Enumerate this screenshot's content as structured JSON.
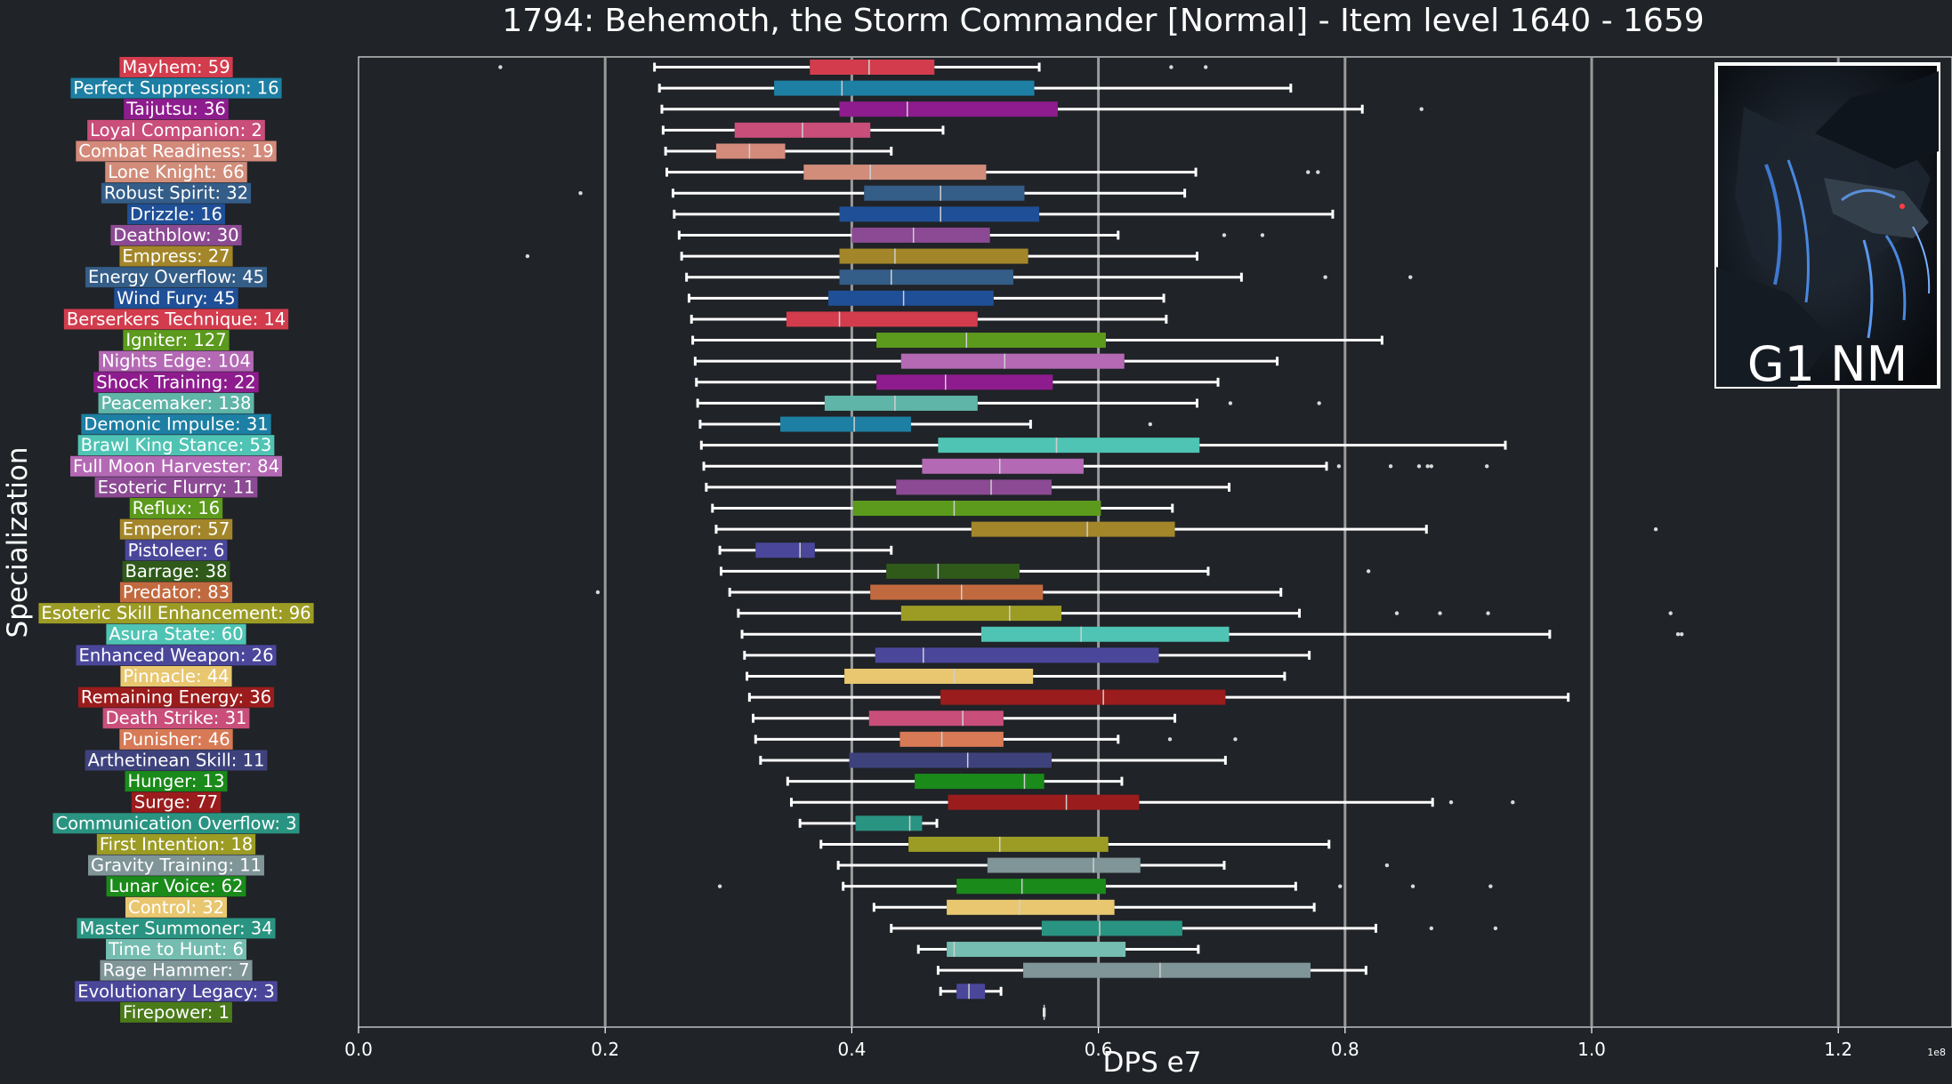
{
  "chart_data": {
    "type": "box",
    "title": "1794: Behemoth, the Storm Commander [Normal] - Item level 1640 - 1659",
    "xlabel": "DPS e7",
    "ylabel": "Specialization",
    "x_scale_note": "1e8",
    "xlim": [
      0,
      0.1295
    ],
    "x_ticks": [
      "0.0",
      "0.2",
      "0.4",
      "0.6",
      "0.8",
      "1.0",
      "1.2"
    ],
    "x_tick_values": [
      0,
      0.2,
      0.4,
      0.6,
      0.8,
      1.0,
      1.2
    ],
    "gridlines": "vertical at major ticks",
    "inset_image": {
      "caption": "G1 NM",
      "description": "dark dragon artwork",
      "placement": "top-right"
    },
    "series": [
      {
        "label": "Mayhem: 59",
        "color": "#d23c4d",
        "whislo": 0.24,
        "q1": 0.366,
        "med": 0.414,
        "q3": 0.467,
        "whishi": 0.552,
        "fliers": [
          0.115,
          0.659,
          0.687
        ]
      },
      {
        "label": "Perfect Suppression: 16",
        "color": "#1d7fa3",
        "whislo": 0.244,
        "q1": 0.337,
        "med": 0.392,
        "q3": 0.548,
        "whishi": 0.756,
        "fliers": []
      },
      {
        "label": "Taijutsu: 36",
        "color": "#8e1c8e",
        "whislo": 0.246,
        "q1": 0.39,
        "med": 0.445,
        "q3": 0.567,
        "whishi": 0.814,
        "fliers": [
          0.862
        ]
      },
      {
        "label": "Loyal Companion: 2",
        "color": "#c94e79",
        "whislo": 0.247,
        "q1": 0.305,
        "med": 0.36,
        "q3": 0.415,
        "whishi": 0.474,
        "fliers": []
      },
      {
        "label": "Combat Readiness: 19",
        "color": "#d48a7b",
        "whislo": 0.249,
        "q1": 0.29,
        "med": 0.317,
        "q3": 0.346,
        "whishi": 0.432,
        "fliers": []
      },
      {
        "label": "Lone Knight: 66",
        "color": "#d18d7a",
        "whislo": 0.25,
        "q1": 0.361,
        "med": 0.415,
        "q3": 0.509,
        "whishi": 0.679,
        "fliers": [
          0.77,
          0.778
        ]
      },
      {
        "label": "Robust Spirit: 32",
        "color": "#345d88",
        "whislo": 0.255,
        "q1": 0.41,
        "med": 0.472,
        "q3": 0.54,
        "whishi": 0.67,
        "fliers": [
          0.18
        ]
      },
      {
        "label": "Drizzle: 16",
        "color": "#1f4f96",
        "whislo": 0.256,
        "q1": 0.39,
        "med": 0.472,
        "q3": 0.552,
        "whishi": 0.79,
        "fliers": []
      },
      {
        "label": "Deathblow: 30",
        "color": "#8b4a93",
        "whislo": 0.26,
        "q1": 0.4,
        "med": 0.45,
        "q3": 0.512,
        "whishi": 0.616,
        "fliers": [
          0.702,
          0.733
        ]
      },
      {
        "label": "Empress: 27",
        "color": "#a3862a",
        "whislo": 0.262,
        "q1": 0.39,
        "med": 0.435,
        "q3": 0.543,
        "whishi": 0.68,
        "fliers": [
          0.137
        ]
      },
      {
        "label": "Energy Overflow: 45",
        "color": "#345d88",
        "whislo": 0.266,
        "q1": 0.39,
        "med": 0.432,
        "q3": 0.531,
        "whishi": 0.716,
        "fliers": [
          0.784,
          0.853
        ]
      },
      {
        "label": "Wind Fury: 45",
        "color": "#1f4f96",
        "whislo": 0.268,
        "q1": 0.381,
        "med": 0.442,
        "q3": 0.515,
        "whishi": 0.653,
        "fliers": []
      },
      {
        "label": "Berserkers Technique: 14",
        "color": "#d23c4d",
        "whislo": 0.27,
        "q1": 0.347,
        "med": 0.39,
        "q3": 0.502,
        "whishi": 0.655,
        "fliers": []
      },
      {
        "label": "Igniter: 127",
        "color": "#5b9a1c",
        "whislo": 0.271,
        "q1": 0.42,
        "med": 0.493,
        "q3": 0.606,
        "whishi": 0.83,
        "fliers": []
      },
      {
        "label": "Nights Edge: 104",
        "color": "#b469b4",
        "whislo": 0.273,
        "q1": 0.44,
        "med": 0.524,
        "q3": 0.621,
        "whishi": 0.745,
        "fliers": []
      },
      {
        "label": "Shock Training: 22",
        "color": "#8e1c8e",
        "whislo": 0.274,
        "q1": 0.42,
        "med": 0.476,
        "q3": 0.563,
        "whishi": 0.697,
        "fliers": []
      },
      {
        "label": "Peacemaker: 138",
        "color": "#5fb5a8",
        "whislo": 0.275,
        "q1": 0.378,
        "med": 0.435,
        "q3": 0.502,
        "whishi": 0.68,
        "fliers": [
          0.707,
          0.779
        ]
      },
      {
        "label": "Demonic Impulse: 31",
        "color": "#1d7fa3",
        "whislo": 0.277,
        "q1": 0.342,
        "med": 0.402,
        "q3": 0.448,
        "whishi": 0.545,
        "fliers": [
          0.642
        ]
      },
      {
        "label": "Brawl King Stance: 53",
        "color": "#4fc4b4",
        "whislo": 0.278,
        "q1": 0.47,
        "med": 0.566,
        "q3": 0.682,
        "whishi": 0.93,
        "fliers": []
      },
      {
        "label": "Full Moon Harvester: 84",
        "color": "#b469b4",
        "whislo": 0.28,
        "q1": 0.457,
        "med": 0.52,
        "q3": 0.588,
        "whishi": 0.785,
        "fliers": [
          0.795,
          0.837,
          0.86,
          0.867,
          0.87,
          0.915
        ]
      },
      {
        "label": "Esoteric Flurry: 11",
        "color": "#8b4a93",
        "whislo": 0.282,
        "q1": 0.436,
        "med": 0.513,
        "q3": 0.562,
        "whishi": 0.706,
        "fliers": []
      },
      {
        "label": "Reflux: 16",
        "color": "#5b9a1c",
        "whislo": 0.287,
        "q1": 0.401,
        "med": 0.483,
        "q3": 0.602,
        "whishi": 0.66,
        "fliers": []
      },
      {
        "label": "Emperor: 57",
        "color": "#a3862a",
        "whislo": 0.29,
        "q1": 0.497,
        "med": 0.591,
        "q3": 0.662,
        "whishi": 0.866,
        "fliers": [
          1.052
        ]
      },
      {
        "label": "Pistoleer: 6",
        "color": "#4a479b",
        "whislo": 0.293,
        "q1": 0.322,
        "med": 0.358,
        "q3": 0.37,
        "whishi": 0.432,
        "fliers": []
      },
      {
        "label": "Barrage: 38",
        "color": "#2f5a1a",
        "whislo": 0.294,
        "q1": 0.428,
        "med": 0.47,
        "q3": 0.536,
        "whishi": 0.689,
        "fliers": [
          0.819
        ]
      },
      {
        "label": "Predator: 83",
        "color": "#c26a3f",
        "whislo": 0.301,
        "q1": 0.415,
        "med": 0.489,
        "q3": 0.555,
        "whishi": 0.748,
        "fliers": [
          0.194
        ]
      },
      {
        "label": "Esoteric Skill Enhancement: 96",
        "color": "#9c9c25",
        "whislo": 0.308,
        "q1": 0.44,
        "med": 0.528,
        "q3": 0.57,
        "whishi": 0.763,
        "fliers": [
          0.842,
          0.877,
          0.916,
          1.064
        ]
      },
      {
        "label": "Asura State: 60",
        "color": "#4fc4b4",
        "whislo": 0.311,
        "q1": 0.505,
        "med": 0.586,
        "q3": 0.706,
        "whishi": 0.966,
        "fliers": [
          1.07,
          1.073
        ]
      },
      {
        "label": "Enhanced Weapon: 26",
        "color": "#4a479b",
        "whislo": 0.313,
        "q1": 0.419,
        "med": 0.458,
        "q3": 0.649,
        "whishi": 0.771,
        "fliers": []
      },
      {
        "label": "Pinnacle: 44",
        "color": "#e8c770",
        "whislo": 0.315,
        "q1": 0.394,
        "med": 0.483,
        "q3": 0.547,
        "whishi": 0.751,
        "fliers": []
      },
      {
        "label": "Remaining Energy: 36",
        "color": "#9b1c1c",
        "whislo": 0.317,
        "q1": 0.472,
        "med": 0.604,
        "q3": 0.703,
        "whishi": 0.981,
        "fliers": []
      },
      {
        "label": "Death Strike: 31",
        "color": "#c94e79",
        "whislo": 0.32,
        "q1": 0.414,
        "med": 0.49,
        "q3": 0.523,
        "whishi": 0.662,
        "fliers": []
      },
      {
        "label": "Punisher: 46",
        "color": "#d77a55",
        "whislo": 0.322,
        "q1": 0.439,
        "med": 0.473,
        "q3": 0.523,
        "whishi": 0.616,
        "fliers": [
          0.658,
          0.711
        ]
      },
      {
        "label": "Arthetinean Skill: 11",
        "color": "#3e427c",
        "whislo": 0.326,
        "q1": 0.398,
        "med": 0.494,
        "q3": 0.562,
        "whishi": 0.703,
        "fliers": []
      },
      {
        "label": "Hunger: 13",
        "color": "#1a8a1a",
        "whislo": 0.348,
        "q1": 0.451,
        "med": 0.54,
        "q3": 0.556,
        "whishi": 0.619,
        "fliers": []
      },
      {
        "label": "Surge: 77",
        "color": "#9b1c1c",
        "whislo": 0.351,
        "q1": 0.478,
        "med": 0.574,
        "q3": 0.633,
        "whishi": 0.871,
        "fliers": [
          0.886,
          0.936
        ]
      },
      {
        "label": "Communication Overflow: 3",
        "color": "#2a9482",
        "whislo": 0.358,
        "q1": 0.403,
        "med": 0.447,
        "q3": 0.457,
        "whishi": 0.469,
        "fliers": []
      },
      {
        "label": "First Intention: 18",
        "color": "#9c9c25",
        "whislo": 0.375,
        "q1": 0.446,
        "med": 0.52,
        "q3": 0.608,
        "whishi": 0.787,
        "fliers": []
      },
      {
        "label": "Gravity Training: 11",
        "color": "#7f9598",
        "whislo": 0.389,
        "q1": 0.51,
        "med": 0.596,
        "q3": 0.634,
        "whishi": 0.702,
        "fliers": [
          0.834
        ]
      },
      {
        "label": "Lunar Voice: 62",
        "color": "#1a8a1a",
        "whislo": 0.393,
        "q1": 0.485,
        "med": 0.538,
        "q3": 0.606,
        "whishi": 0.76,
        "fliers": [
          0.293,
          0.796,
          0.855,
          0.918
        ]
      },
      {
        "label": "Control: 32",
        "color": "#e8c770",
        "whislo": 0.418,
        "q1": 0.477,
        "med": 0.536,
        "q3": 0.613,
        "whishi": 0.775,
        "fliers": []
      },
      {
        "label": "Master Summoner: 34",
        "color": "#2a9482",
        "whislo": 0.432,
        "q1": 0.554,
        "med": 0.601,
        "q3": 0.668,
        "whishi": 0.825,
        "fliers": [
          0.87,
          0.922
        ]
      },
      {
        "label": "Time to Hunt: 6",
        "color": "#74bdb0",
        "whislo": 0.454,
        "q1": 0.477,
        "med": 0.483,
        "q3": 0.622,
        "whishi": 0.681,
        "fliers": []
      },
      {
        "label": "Rage Hammer: 7",
        "color": "#7f9598",
        "whislo": 0.47,
        "q1": 0.539,
        "med": 0.65,
        "q3": 0.772,
        "whishi": 0.817,
        "fliers": []
      },
      {
        "label": "Evolutionary Legacy: 3",
        "color": "#4a479b",
        "whislo": 0.472,
        "q1": 0.485,
        "med": 0.495,
        "q3": 0.508,
        "whishi": 0.521,
        "fliers": []
      },
      {
        "label": "Firepower: 1",
        "color": "#4a7a1a",
        "whislo": 0.556,
        "q1": 0.556,
        "med": 0.556,
        "q3": 0.556,
        "whishi": 0.556,
        "fliers": []
      }
    ]
  }
}
